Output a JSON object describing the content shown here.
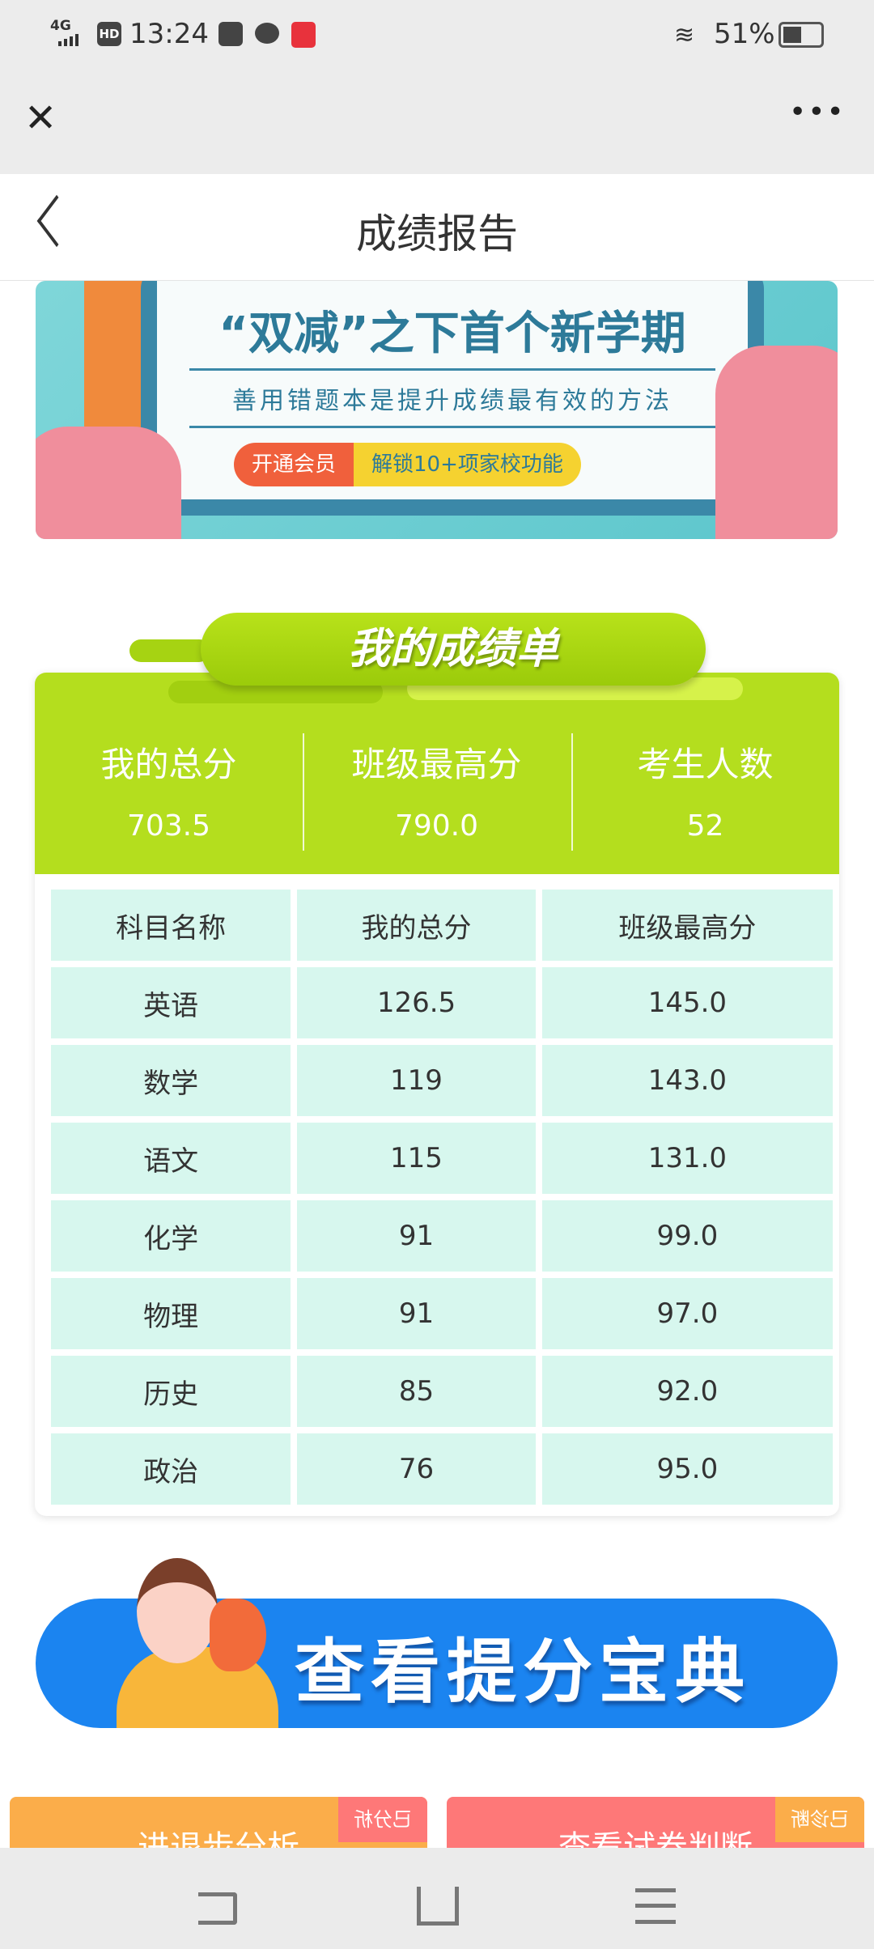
{
  "status_bar": {
    "network": "4G",
    "hd": "HD",
    "time": "13:24",
    "battery": "51%",
    "battery_level": 0.51,
    "icons": [
      "signal-icon",
      "hd-icon",
      "telegram-icon",
      "chat-icon",
      "toutiao-app-icon",
      "wifi-icon",
      "battery-icon"
    ]
  },
  "browser": {
    "close_icon": "close-icon",
    "more_icon": "more-icon"
  },
  "header": {
    "title": "成绩报告",
    "back_icon": "chevron-left-icon"
  },
  "banner": {
    "headline": "“双减”之下首个新学期",
    "subtitle": "善用错题本是提升成绩最有效的方法",
    "cta_left": "开通会员",
    "cta_right": "解锁10+项家校功能"
  },
  "scorecard": {
    "title": "我的成绩单",
    "summary": [
      {
        "label": "我的总分",
        "value": "703.5"
      },
      {
        "label": "班级最高分",
        "value": "790.0"
      },
      {
        "label": "考生人数",
        "value": "52"
      }
    ],
    "columns": [
      "科目名称",
      "我的总分",
      "班级最高分"
    ],
    "rows": [
      [
        "英语",
        "126.5",
        "145.0"
      ],
      [
        "数学",
        "119",
        "143.0"
      ],
      [
        "语文",
        "115",
        "131.0"
      ],
      [
        "化学",
        "91",
        "99.0"
      ],
      [
        "物理",
        "91",
        "97.0"
      ],
      [
        "历史",
        "85",
        "92.0"
      ],
      [
        "政治",
        "76",
        "95.0"
      ]
    ],
    "accent": "#b4de1e"
  },
  "promo": {
    "label": "查看提分宝典",
    "color": "#1b84f0"
  },
  "cards": [
    {
      "label": "进退步分析",
      "tag": "已分析",
      "color": "#fbad4a"
    },
    {
      "label": "查看试卷判断",
      "tag": "已诊断",
      "color": "#fe7878"
    }
  ],
  "nav": {
    "back": "back-icon",
    "home": "home-icon",
    "menu": "menu-icon"
  }
}
